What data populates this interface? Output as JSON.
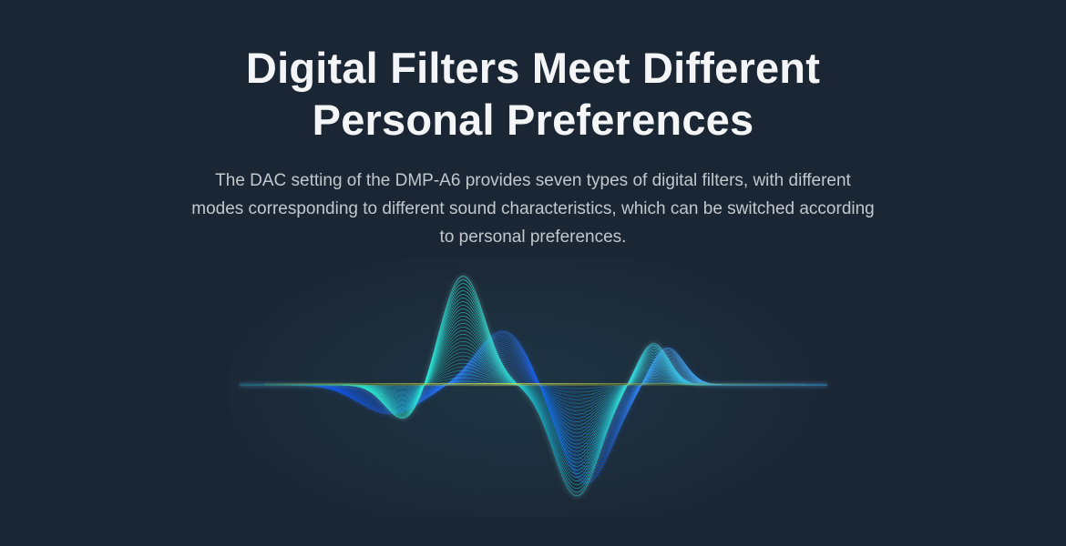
{
  "page": {
    "background_color": "#1b2634"
  },
  "hero": {
    "heading_lines": [
      "Digital Filters Meet Different",
      "Personal Preferences"
    ],
    "paragraph_lines": [
      "The DAC setting of the DMP-A6 provides seven types of digital filters, with different",
      "modes corresponding to different sound characteristics, which can be switched according",
      "to personal preferences."
    ],
    "heading_color": "#f3f5f7",
    "paragraph_color": "#c2c7cd"
  },
  "waveform": {
    "description": "decorative digital-filter impulse-response waveform made of fine wireframe lines",
    "accent_cyan": "#2ce9cf",
    "accent_blue": "#1155e6",
    "axis_highlight": "#cde05e",
    "backdrop_glow": "#2e8098",
    "gradients": {
      "cyan": [
        [
          0.0,
          "#0c6f80",
          0.45
        ],
        [
          0.16,
          "#16b3a8",
          0.85
        ],
        [
          0.25,
          "#2ce9cf",
          0.92
        ],
        [
          0.34,
          "#27e2d6",
          0.92
        ],
        [
          0.43,
          "#3ae8da",
          0.92
        ],
        [
          0.49,
          "#20b9c4",
          0.9
        ],
        [
          0.53,
          "#14a0c0",
          0.9
        ],
        [
          0.58,
          "#1bc3cc",
          0.9
        ],
        [
          0.64,
          "#2cddd6",
          0.9
        ],
        [
          0.7,
          "#3ed2ee",
          0.9
        ],
        [
          0.78,
          "#2fb4e4",
          0.85
        ],
        [
          0.9,
          "#2394d0",
          0.78
        ],
        [
          1.0,
          "#1f86c4",
          0.65
        ]
      ],
      "blue": [
        [
          0.0,
          "#0b3f92",
          0.55
        ],
        [
          0.19,
          "#1155e6",
          0.8
        ],
        [
          0.36,
          "#2472f0",
          0.85
        ],
        [
          0.46,
          "#2f7ff2",
          0.85
        ],
        [
          0.52,
          "#1250e4",
          0.92
        ],
        [
          0.6,
          "#1b60ea",
          0.88
        ],
        [
          0.68,
          "#2f86ee",
          0.85
        ],
        [
          0.73,
          "#48a8f4",
          0.85
        ],
        [
          0.84,
          "#2fa0dd",
          0.75
        ],
        [
          1.0,
          "#2188cc",
          0.62
        ]
      ],
      "axis": [
        [
          0.0,
          "#86a23e",
          0.0
        ],
        [
          0.12,
          "#7fa03c",
          0.55
        ],
        [
          0.3,
          "#a9bd4a",
          0.9
        ],
        [
          0.45,
          "#cde05e",
          1.0
        ],
        [
          0.6,
          "#a9bd4a",
          0.85
        ],
        [
          0.8,
          "#7fa03c",
          0.45
        ],
        [
          1.0,
          "#7fa03c",
          0.0
        ]
      ]
    }
  }
}
